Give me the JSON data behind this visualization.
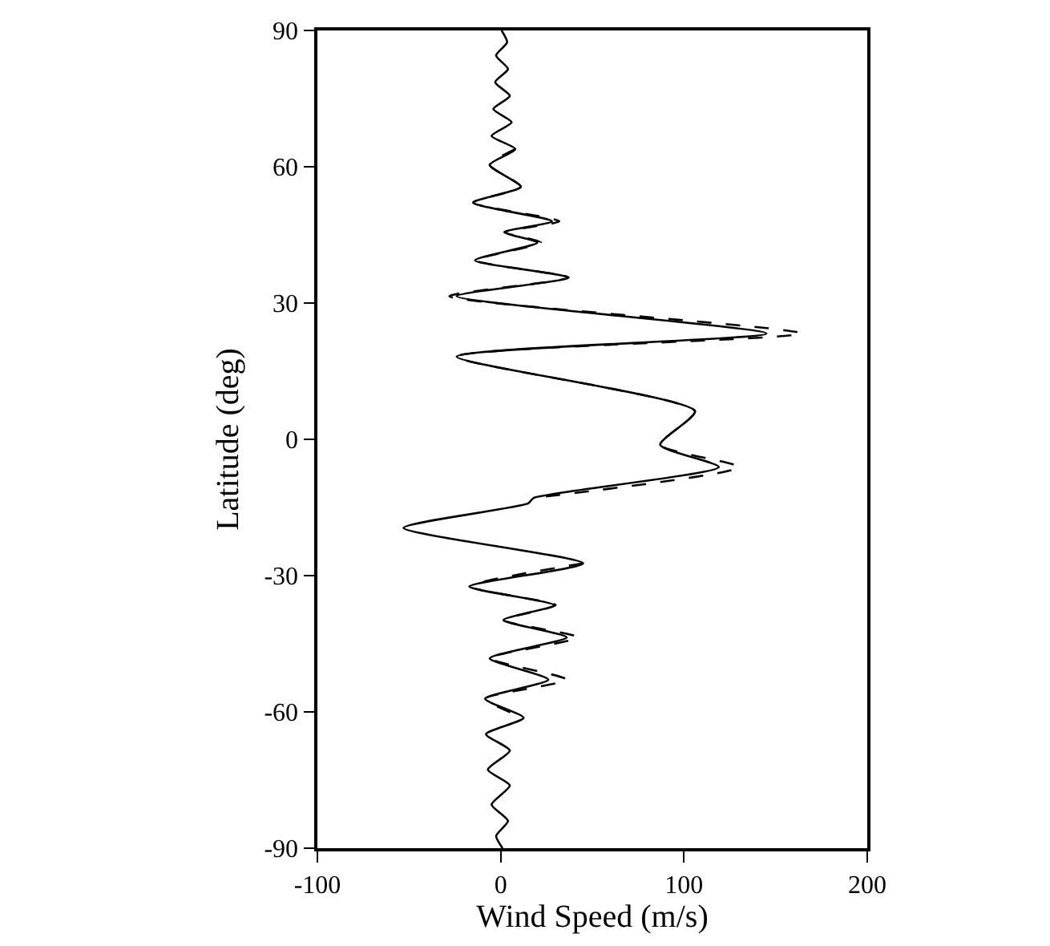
{
  "chart_data": {
    "type": "line",
    "xlabel": "Wind Speed (m/s)",
    "ylabel": "Latitude (deg)",
    "xlim": [
      -100,
      200
    ],
    "xticks": [
      -100,
      0,
      100,
      200
    ],
    "ylim": [
      -90,
      90
    ],
    "yticks": [
      -90,
      -60,
      -30,
      0,
      30,
      60,
      90
    ],
    "grid": false,
    "marker": "none",
    "series": [
      {
        "color": "#000000",
        "line_style": "solid",
        "x": [
          0.5,
          3.5,
          -2.5,
          4,
          -3,
          5,
          -4,
          6,
          -5,
          8,
          -6,
          11,
          -15,
          28,
          2,
          20,
          -14,
          37,
          -24,
          145,
          -24,
          106,
          87,
          119,
          18,
          15,
          -53,
          45,
          -17,
          29,
          1.5,
          36,
          -6,
          26,
          -8.5,
          12.5,
          -8,
          5,
          -7,
          5,
          -5,
          4,
          -2.5,
          1
        ],
        "values": [
          90,
          87.4,
          84.5,
          81.5,
          78.6,
          75.6,
          72.7,
          69.8,
          66.8,
          63.9,
          60.4,
          55.6,
          52.1,
          48,
          45.6,
          43.3,
          39.4,
          35.6,
          31.5,
          23.3,
          18.2,
          6.2,
          -1.2,
          -6.1,
          -12.9,
          -14.1,
          -19.5,
          -27.3,
          -32.4,
          -36.5,
          -39.8,
          -43.6,
          -48.2,
          -52.9,
          -57.1,
          -61.3,
          -64.9,
          -68.5,
          -72.7,
          -76.2,
          -80.4,
          -84,
          -87.3,
          -90
        ]
      },
      {
        "color": "#000000",
        "line_style": "dashed",
        "x": [
          8,
          -6,
          11,
          -15,
          32,
          2,
          22,
          -14,
          37,
          -28,
          164,
          -24,
          106,
          87,
          130,
          18
        ],
        "values": [
          63.9,
          60.4,
          55.6,
          52.1,
          48,
          45.6,
          43.3,
          39.4,
          35.6,
          31.5,
          23.3,
          18.2,
          6.2,
          -1.2,
          -6.1,
          -12.9
        ]
      },
      {
        "color": "#000000",
        "line_style": "dashed",
        "x": [
          45,
          -17,
          30,
          1.5,
          42,
          -6,
          36,
          -8.5,
          12.5
        ],
        "values": [
          -27.3,
          -32.4,
          -36.5,
          -39.8,
          -43.6,
          -48.2,
          -52.9,
          -57.1,
          -61.3
        ]
      }
    ]
  }
}
